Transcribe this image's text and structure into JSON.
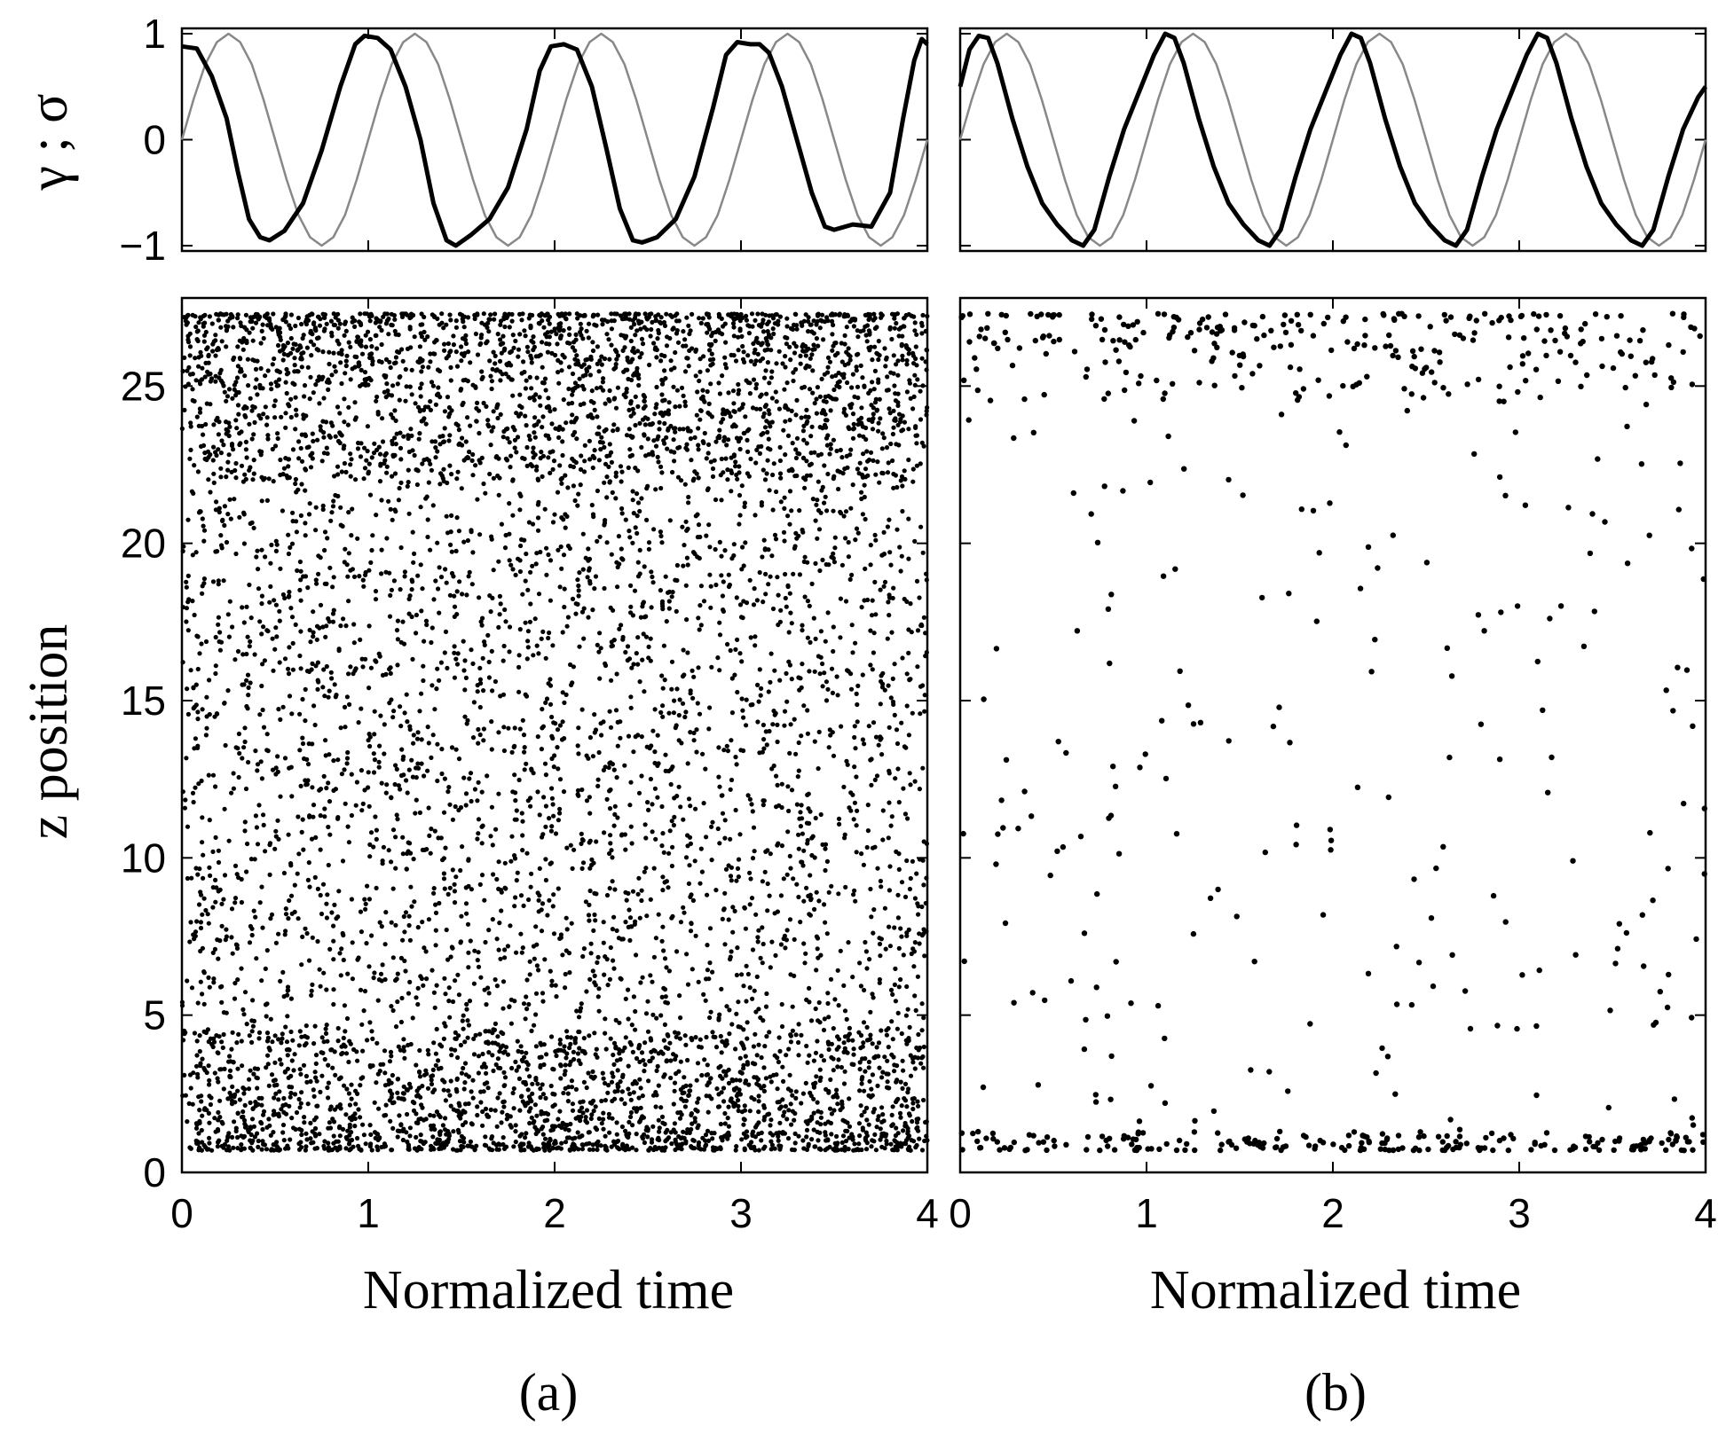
{
  "chart_data": [
    {
      "id": "a-top",
      "type": "line",
      "ylabel": "γ ; σ",
      "xlim": [
        0,
        4
      ],
      "ylim": [
        -1.05,
        1.05
      ],
      "yticks": [
        "1",
        "0",
        "−1"
      ],
      "ytick_values": [
        1,
        0,
        -1
      ],
      "grid": false,
      "series": [
        {
          "role": "gamma",
          "color": "#888888",
          "x": [
            0,
            0.0625,
            0.125,
            0.1875,
            0.25,
            0.3125,
            0.375,
            0.4375,
            0.5,
            0.5625,
            0.625,
            0.6875,
            0.75,
            0.8125,
            0.875,
            0.9375,
            1.0,
            1.0625,
            1.125,
            1.1875,
            1.25,
            1.3125,
            1.375,
            1.4375,
            1.5,
            1.5625,
            1.625,
            1.6875,
            1.75,
            1.8125,
            1.875,
            1.9375,
            2.0,
            2.0625,
            2.125,
            2.1875,
            2.25,
            2.3125,
            2.375,
            2.4375,
            2.5,
            2.5625,
            2.625,
            2.6875,
            2.75,
            2.8125,
            2.875,
            2.9375,
            3.0,
            3.0625,
            3.125,
            3.1875,
            3.25,
            3.3125,
            3.375,
            3.4375,
            3.5,
            3.5625,
            3.625,
            3.6875,
            3.75,
            3.8125,
            3.875,
            3.9375,
            4.0
          ],
          "y": [
            0.0,
            0.38,
            0.71,
            0.92,
            1.0,
            0.92,
            0.71,
            0.38,
            0.0,
            -0.38,
            -0.71,
            -0.92,
            -1.0,
            -0.92,
            -0.71,
            -0.38,
            0.0,
            0.38,
            0.71,
            0.92,
            1.0,
            0.92,
            0.71,
            0.38,
            0.0,
            -0.38,
            -0.71,
            -0.92,
            -1.0,
            -0.92,
            -0.71,
            -0.38,
            0.0,
            0.38,
            0.71,
            0.92,
            1.0,
            0.92,
            0.71,
            0.38,
            0.0,
            -0.38,
            -0.71,
            -0.92,
            -1.0,
            -0.92,
            -0.71,
            -0.38,
            0.0,
            0.38,
            0.71,
            0.92,
            1.0,
            0.92,
            0.71,
            0.38,
            0.0,
            -0.38,
            -0.71,
            -0.92,
            -1.0,
            -0.92,
            -0.71,
            -0.38,
            0.0
          ]
        },
        {
          "role": "sigma",
          "color": "#000000",
          "x": [
            0,
            0.08,
            0.16,
            0.24,
            0.3,
            0.36,
            0.42,
            0.47,
            0.55,
            0.65,
            0.75,
            0.85,
            0.93,
            0.98,
            1.05,
            1.12,
            1.2,
            1.28,
            1.35,
            1.42,
            1.47,
            1.55,
            1.65,
            1.75,
            1.85,
            1.92,
            1.98,
            2.05,
            2.12,
            2.2,
            2.28,
            2.35,
            2.42,
            2.47,
            2.55,
            2.65,
            2.75,
            2.85,
            2.92,
            2.98,
            3.05,
            3.1,
            3.15,
            3.22,
            3.3,
            3.38,
            3.45,
            3.5,
            3.6,
            3.7,
            3.8,
            3.87,
            3.93,
            3.97,
            4.0
          ],
          "y": [
            0.88,
            0.86,
            0.6,
            0.2,
            -0.3,
            -0.75,
            -0.92,
            -0.95,
            -0.86,
            -0.6,
            -0.1,
            0.5,
            0.9,
            0.98,
            0.96,
            0.85,
            0.5,
            0.0,
            -0.6,
            -0.95,
            -1.0,
            -0.9,
            -0.75,
            -0.45,
            0.1,
            0.65,
            0.88,
            0.9,
            0.85,
            0.5,
            -0.1,
            -0.65,
            -0.95,
            -0.97,
            -0.92,
            -0.75,
            -0.35,
            0.3,
            0.8,
            0.92,
            0.9,
            0.9,
            0.82,
            0.5,
            0.0,
            -0.5,
            -0.82,
            -0.85,
            -0.8,
            -0.82,
            -0.5,
            0.2,
            0.75,
            0.95,
            0.9
          ]
        }
      ]
    },
    {
      "id": "b-top",
      "type": "line",
      "xlim": [
        0,
        4
      ],
      "ylim": [
        -1.05,
        1.05
      ],
      "grid": false,
      "series": [
        {
          "role": "gamma",
          "color": "#888888",
          "x": [
            0,
            0.0625,
            0.125,
            0.1875,
            0.25,
            0.3125,
            0.375,
            0.4375,
            0.5,
            0.5625,
            0.625,
            0.6875,
            0.75,
            0.8125,
            0.875,
            0.9375,
            1.0,
            1.0625,
            1.125,
            1.1875,
            1.25,
            1.3125,
            1.375,
            1.4375,
            1.5,
            1.5625,
            1.625,
            1.6875,
            1.75,
            1.8125,
            1.875,
            1.9375,
            2.0,
            2.0625,
            2.125,
            2.1875,
            2.25,
            2.3125,
            2.375,
            2.4375,
            2.5,
            2.5625,
            2.625,
            2.6875,
            2.75,
            2.8125,
            2.875,
            2.9375,
            3.0,
            3.0625,
            3.125,
            3.1875,
            3.25,
            3.3125,
            3.375,
            3.4375,
            3.5,
            3.5625,
            3.625,
            3.6875,
            3.75,
            3.8125,
            3.875,
            3.9375,
            4.0
          ],
          "y": [
            0.0,
            0.38,
            0.71,
            0.92,
            1.0,
            0.92,
            0.71,
            0.38,
            0.0,
            -0.38,
            -0.71,
            -0.92,
            -1.0,
            -0.92,
            -0.71,
            -0.38,
            0.0,
            0.38,
            0.71,
            0.92,
            1.0,
            0.92,
            0.71,
            0.38,
            0.0,
            -0.38,
            -0.71,
            -0.92,
            -1.0,
            -0.92,
            -0.71,
            -0.38,
            0.0,
            0.38,
            0.71,
            0.92,
            1.0,
            0.92,
            0.71,
            0.38,
            0.0,
            -0.38,
            -0.71,
            -0.92,
            -1.0,
            -0.92,
            -0.71,
            -0.38,
            0.0,
            0.38,
            0.71,
            0.92,
            1.0,
            0.92,
            0.71,
            0.38,
            0.0,
            -0.38,
            -0.71,
            -0.92,
            -1.0,
            -0.92,
            -0.71,
            -0.38,
            0.0
          ]
        },
        {
          "role": "sigma",
          "color": "#000000",
          "x": [
            0,
            0.05,
            0.1,
            0.15,
            0.2,
            0.28,
            0.36,
            0.44,
            0.52,
            0.6,
            0.66,
            0.72,
            0.8,
            0.88,
            0.96,
            1.04,
            1.1,
            1.15,
            1.2,
            1.28,
            1.36,
            1.44,
            1.52,
            1.6,
            1.66,
            1.72,
            1.8,
            1.88,
            1.96,
            2.04,
            2.1,
            2.15,
            2.2,
            2.28,
            2.36,
            2.44,
            2.52,
            2.6,
            2.66,
            2.72,
            2.8,
            2.88,
            2.96,
            3.04,
            3.1,
            3.15,
            3.2,
            3.28,
            3.36,
            3.44,
            3.52,
            3.6,
            3.66,
            3.72,
            3.8,
            3.88,
            3.96,
            4.0
          ],
          "y": [
            0.5,
            0.85,
            0.98,
            0.96,
            0.72,
            0.2,
            -0.25,
            -0.6,
            -0.8,
            -0.95,
            -1.0,
            -0.85,
            -0.35,
            0.1,
            0.45,
            0.8,
            1.0,
            0.96,
            0.72,
            0.2,
            -0.25,
            -0.6,
            -0.8,
            -0.95,
            -1.0,
            -0.85,
            -0.35,
            0.1,
            0.45,
            0.8,
            1.0,
            0.96,
            0.72,
            0.2,
            -0.25,
            -0.6,
            -0.8,
            -0.95,
            -1.0,
            -0.85,
            -0.35,
            0.1,
            0.45,
            0.8,
            1.0,
            0.96,
            0.72,
            0.2,
            -0.25,
            -0.6,
            -0.8,
            -0.95,
            -1.0,
            -0.85,
            -0.35,
            0.1,
            0.4,
            0.5
          ]
        }
      ]
    },
    {
      "id": "a-bottom",
      "type": "scatter",
      "xlabel": "Normalized time",
      "ylabel": "z position",
      "xlim": [
        0,
        4
      ],
      "ylim": [
        0,
        27.8
      ],
      "xticks": [
        "0",
        "1",
        "2",
        "3",
        "4"
      ],
      "yticks": [
        "0",
        "5",
        "10",
        "15",
        "20",
        "25"
      ],
      "ytick_values": [
        0,
        5,
        10,
        15,
        20,
        25
      ],
      "grid": false,
      "description_of_points": "dense cloud of particle positions; heavy bands near z≈1 and z≈27, with periodic streaks",
      "generator": {
        "seed": 7,
        "n_uniform": 4200,
        "n_bottom_band": 1400,
        "n_top_band": 1500,
        "band_bottom": [
          0.7,
          4.5
        ],
        "band_top": [
          22,
          27.3
        ]
      }
    },
    {
      "id": "b-bottom",
      "type": "scatter",
      "xlabel": "Normalized time",
      "xlim": [
        0,
        4
      ],
      "ylim": [
        0,
        27.8
      ],
      "xticks": [
        "0",
        "1",
        "2",
        "3",
        "4"
      ],
      "grid": false,
      "description_of_points": "sparse particle positions; concentrations near z≈1 and z≈27",
      "generator": {
        "seed": 13,
        "n_uniform": 240,
        "n_bottom_band": 200,
        "n_top_band": 260,
        "band_bottom": [
          0.7,
          1.3
        ],
        "band_top": [
          24.5,
          27.3
        ]
      }
    }
  ],
  "labels": {
    "panel_a": "(a)",
    "panel_b": "(b)",
    "x_axis_title": "Normalized time",
    "y_axis_title_top": "γ ; σ",
    "y_axis_title_bottom": "z position"
  }
}
